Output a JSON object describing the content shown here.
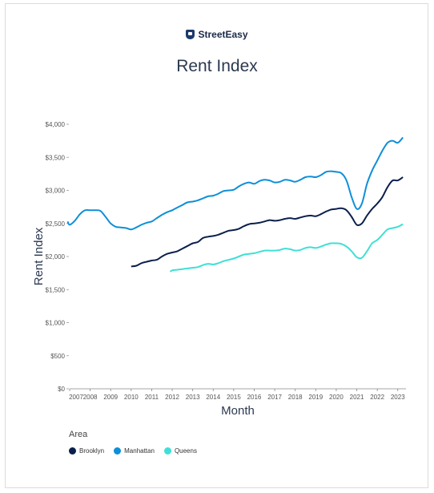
{
  "brand": {
    "name": "StreetEasy"
  },
  "chart_data": {
    "type": "line",
    "title": "Rent Index",
    "xlabel": "Month",
    "ylabel": "Rent Index",
    "xlim": [
      2007.0,
      2023.4
    ],
    "ylim": [
      0,
      4000
    ],
    "yticks": [
      0,
      500,
      1000,
      1500,
      2000,
      2500,
      3000,
      3500,
      4000
    ],
    "ytick_labels": [
      "$0",
      "$500",
      "$1,000",
      "$1,500",
      "$2,000",
      "$2,500",
      "$3,000",
      "$3,500",
      "$4,000"
    ],
    "xticks": [
      2007,
      2008,
      2009,
      2010,
      2011,
      2012,
      2013,
      2014,
      2015,
      2016,
      2017,
      2018,
      2019,
      2020,
      2021,
      2022,
      2023
    ],
    "xtick_labels": [
      "2007",
      "2008",
      "2009",
      "2010",
      "2011",
      "2012",
      "2013",
      "2014",
      "2015",
      "2016",
      "2017",
      "2018",
      "2019",
      "2020",
      "2021",
      "2022",
      "2023"
    ],
    "grid": false,
    "legend": {
      "title": "Area",
      "position": "bottom-left"
    },
    "series": [
      {
        "name": "Brooklyn",
        "color": "#0b1f4b",
        "x": [
          2010.0,
          2010.25,
          2010.5,
          2010.75,
          2011.0,
          2011.25,
          2011.5,
          2011.75,
          2012.0,
          2012.25,
          2012.5,
          2012.75,
          2013.0,
          2013.25,
          2013.5,
          2013.75,
          2014.0,
          2014.25,
          2014.5,
          2014.75,
          2015.0,
          2015.25,
          2015.5,
          2015.75,
          2016.0,
          2016.25,
          2016.5,
          2016.75,
          2017.0,
          2017.25,
          2017.5,
          2017.75,
          2018.0,
          2018.25,
          2018.5,
          2018.75,
          2019.0,
          2019.25,
          2019.5,
          2019.75,
          2020.0,
          2020.25,
          2020.5,
          2020.75,
          2021.0,
          2021.25,
          2021.5,
          2021.75,
          2022.0,
          2022.25,
          2022.5,
          2022.75,
          2023.0,
          2023.25
        ],
        "y": [
          1850,
          1860,
          1900,
          1920,
          1940,
          1950,
          2000,
          2040,
          2060,
          2080,
          2120,
          2160,
          2200,
          2220,
          2280,
          2300,
          2310,
          2330,
          2360,
          2390,
          2400,
          2420,
          2460,
          2490,
          2500,
          2510,
          2530,
          2550,
          2540,
          2550,
          2570,
          2580,
          2570,
          2590,
          2610,
          2620,
          2610,
          2640,
          2680,
          2710,
          2720,
          2730,
          2700,
          2600,
          2480,
          2500,
          2620,
          2720,
          2800,
          2900,
          3050,
          3150,
          3150,
          3200
        ]
      },
      {
        "name": "Manhattan",
        "color": "#0d8fd9",
        "x": [
          2006.9,
          2007.0,
          2007.25,
          2007.5,
          2007.75,
          2008.0,
          2008.25,
          2008.5,
          2008.75,
          2009.0,
          2009.25,
          2009.5,
          2009.75,
          2010.0,
          2010.25,
          2010.5,
          2010.75,
          2011.0,
          2011.25,
          2011.5,
          2011.75,
          2012.0,
          2012.25,
          2012.5,
          2012.75,
          2013.0,
          2013.25,
          2013.5,
          2013.75,
          2014.0,
          2014.25,
          2014.5,
          2014.75,
          2015.0,
          2015.25,
          2015.5,
          2015.75,
          2016.0,
          2016.25,
          2016.5,
          2016.75,
          2017.0,
          2017.25,
          2017.5,
          2017.75,
          2018.0,
          2018.25,
          2018.5,
          2018.75,
          2019.0,
          2019.25,
          2019.5,
          2019.75,
          2020.0,
          2020.25,
          2020.5,
          2020.75,
          2021.0,
          2021.25,
          2021.5,
          2021.75,
          2022.0,
          2022.25,
          2022.5,
          2022.75,
          2023.0,
          2023.25
        ],
        "y": [
          2530,
          2480,
          2540,
          2640,
          2700,
          2700,
          2700,
          2690,
          2600,
          2500,
          2450,
          2440,
          2430,
          2410,
          2440,
          2480,
          2510,
          2530,
          2580,
          2630,
          2670,
          2700,
          2740,
          2780,
          2820,
          2830,
          2850,
          2880,
          2910,
          2920,
          2950,
          2990,
          3000,
          3010,
          3060,
          3100,
          3120,
          3100,
          3140,
          3160,
          3150,
          3120,
          3130,
          3160,
          3150,
          3130,
          3160,
          3200,
          3210,
          3200,
          3230,
          3280,
          3290,
          3280,
          3260,
          3150,
          2900,
          2720,
          2800,
          3100,
          3300,
          3450,
          3600,
          3720,
          3750,
          3720,
          3800
        ]
      },
      {
        "name": "Queens",
        "color": "#3ee0d5",
        "x": [
          2011.9,
          2012.0,
          2012.25,
          2012.5,
          2012.75,
          2013.0,
          2013.25,
          2013.5,
          2013.75,
          2014.0,
          2014.25,
          2014.5,
          2014.75,
          2015.0,
          2015.25,
          2015.5,
          2015.75,
          2016.0,
          2016.25,
          2016.5,
          2016.75,
          2017.0,
          2017.25,
          2017.5,
          2017.75,
          2018.0,
          2018.25,
          2018.5,
          2018.75,
          2019.0,
          2019.25,
          2019.5,
          2019.75,
          2020.0,
          2020.25,
          2020.5,
          2020.75,
          2021.0,
          2021.25,
          2021.5,
          2021.75,
          2022.0,
          2022.25,
          2022.5,
          2022.75,
          2023.0,
          2023.25
        ],
        "y": [
          1770,
          1790,
          1800,
          1810,
          1820,
          1830,
          1840,
          1870,
          1890,
          1880,
          1900,
          1930,
          1950,
          1970,
          2000,
          2030,
          2040,
          2050,
          2070,
          2090,
          2090,
          2090,
          2100,
          2120,
          2110,
          2090,
          2100,
          2130,
          2140,
          2130,
          2150,
          2180,
          2200,
          2200,
          2190,
          2150,
          2080,
          1990,
          1980,
          2080,
          2200,
          2250,
          2330,
          2410,
          2430,
          2450,
          2490
        ]
      }
    ]
  }
}
